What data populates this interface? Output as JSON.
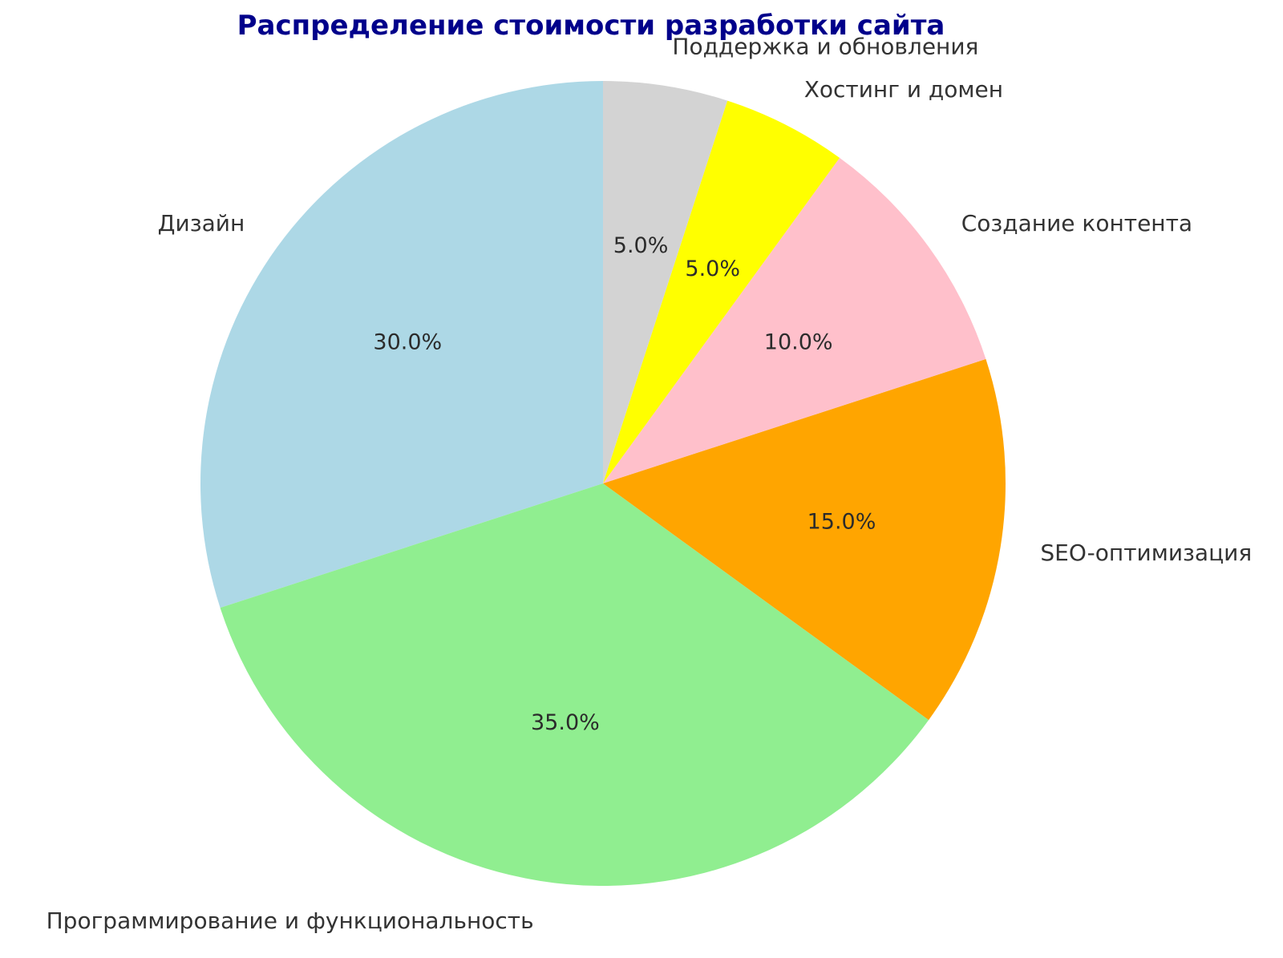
{
  "chart_data": {
    "type": "pie",
    "title": "Распределение стоимости разработки сайта",
    "title_color": "#00008B",
    "background": "#FFFFFF",
    "legend": "none",
    "start_angle": 90,
    "counterclock": true,
    "label_distance": 1.1,
    "pct_distance": 0.6,
    "label_color": "#333333",
    "pct_color": "#2b2b2b",
    "categories": [
      "Дизайн",
      "Программирование и функциональность",
      "SEO-оптимизация",
      "Создание контента",
      "Хостинг и домен",
      "Поддержка и обновления"
    ],
    "values": [
      30.0,
      35.0,
      15.0,
      10.0,
      5.0,
      5.0
    ],
    "slices": [
      {
        "label": "Дизайн",
        "value": 30.0,
        "pct_label": "30.0%",
        "color": "#ADD8E6"
      },
      {
        "label": "Программирование и функциональность",
        "value": 35.0,
        "pct_label": "35.0%",
        "color": "#90EE90"
      },
      {
        "label": "SEO-оптимизация",
        "value": 15.0,
        "pct_label": "15.0%",
        "color": "#FFA500"
      },
      {
        "label": "Создание контента",
        "value": 10.0,
        "pct_label": "10.0%",
        "color": "#FFC0CB"
      },
      {
        "label": "Хостинг и домен",
        "value": 5.0,
        "pct_label": "5.0%",
        "color": "#FFFF00"
      },
      {
        "label": "Поддержка и обновления",
        "value": 5.0,
        "pct_label": "5.0%",
        "color": "#D3D3D3"
      }
    ]
  }
}
